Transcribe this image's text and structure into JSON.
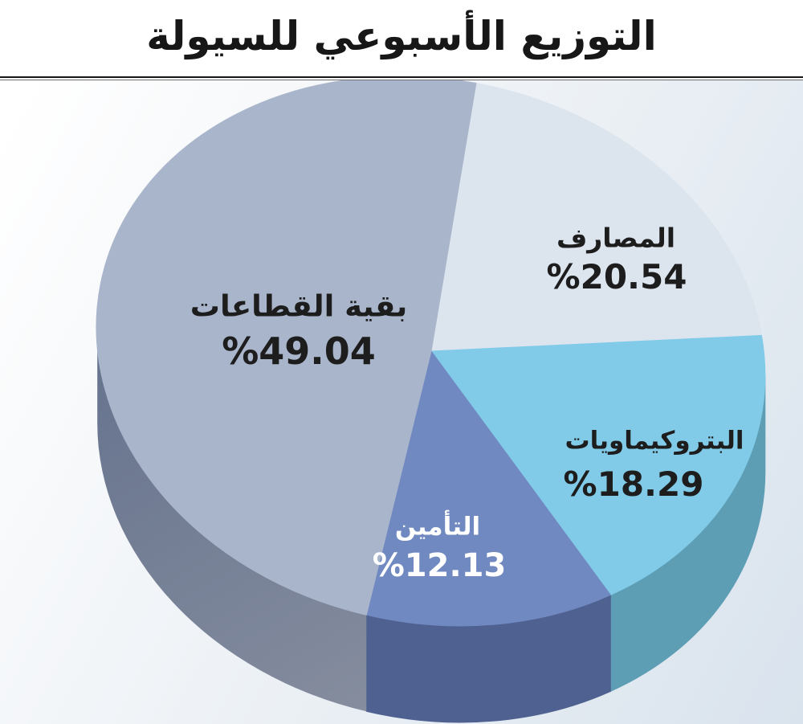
{
  "title": "التوزيع الأسبوعي للسيولة",
  "colors": {
    "divider": "#161616",
    "title_color": "#171717",
    "bg_top": "#ffffff",
    "bg_mid": "#eef2f6",
    "bg_bottom": "#d9e3ed"
  },
  "chart_data": {
    "type": "pie",
    "style": "3d",
    "title": "التوزيع الأسبوعي للسيولة",
    "unit": "%",
    "legend": "none",
    "direction": "clockwise",
    "slices": [
      {
        "id": "banks",
        "name": "المصارف",
        "value": 20.54,
        "value_label": "%20.54",
        "color": "#dce4ee",
        "side_color": "#b0bdd2",
        "label_color": "#1d1d1d"
      },
      {
        "id": "petrochemicals",
        "name": "البتروكيماويات",
        "value": 18.29,
        "value_label": "%18.29",
        "color": "#81cbe8",
        "side_color": "#5e9eb5",
        "label_color": "#1d1d1d"
      },
      {
        "id": "insurance",
        "name": "التأمين",
        "value": 12.13,
        "value_label": "%12.13",
        "color": "#7189c1",
        "side_color": "#4e6190",
        "label_color": "#ffffff"
      },
      {
        "id": "other-sectors",
        "name": "بقية القطاعات",
        "value": 49.04,
        "value_label": "%49.04",
        "color": "#a9b5cb",
        "side_color": "#66738e",
        "side_color2": "#858d9e",
        "label_color": "#1d1d1d"
      }
    ]
  }
}
